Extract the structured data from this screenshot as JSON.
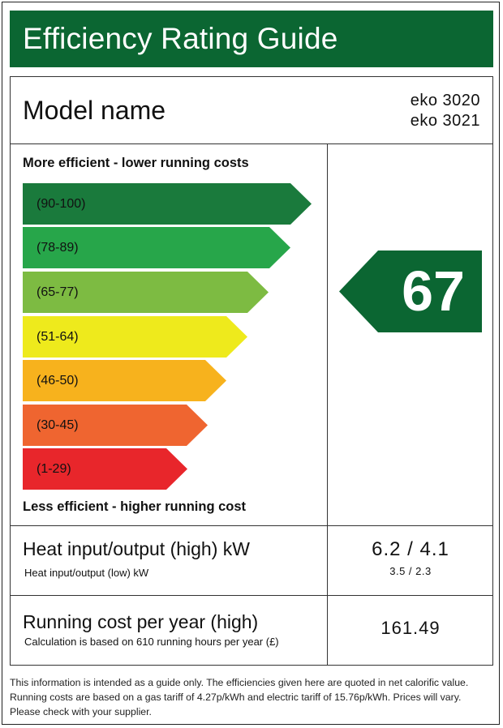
{
  "header": {
    "title": "Efficiency Rating Guide",
    "background": "#0b6632"
  },
  "model": {
    "label": "Model name",
    "values": [
      "eko 3020",
      "eko 3021"
    ]
  },
  "scale": {
    "top_caption": "More efficient - lower running costs",
    "bottom_caption": "Less efficient - higher running cost",
    "bands": [
      {
        "label": "(90-100)",
        "color": "#1a7a3c"
      },
      {
        "label": "(78-89)",
        "color": "#27a64a"
      },
      {
        "label": "(65-77)",
        "color": "#7dbb42"
      },
      {
        "label": "(51-64)",
        "color": "#eeea1c"
      },
      {
        "label": "(46-50)",
        "color": "#f7b21d"
      },
      {
        "label": "(30-45)",
        "color": "#ef6530"
      },
      {
        "label": "(1-29)",
        "color": "#e8262b"
      }
    ]
  },
  "rating": {
    "value": "67",
    "color": "#0b6632"
  },
  "heat": {
    "label": "Heat input/output (high) kW",
    "sub_label": "Heat input/output (low) kW",
    "high_value": "6.2 / 4.1",
    "low_value": "3.5 / 2.3"
  },
  "running_cost": {
    "label": "Running cost per year (high)",
    "sub_label": "Calculation is based on 610 running hours per year (£)",
    "value": "161.49"
  },
  "footnote": "This information is intended as a guide only. The efficiencies given here are quoted in net calorific value. Running costs are based on a gas tariff of 4.27p/kWh and electric tariff of 15.76p/kWh. Prices will vary. Please check with your supplier."
}
